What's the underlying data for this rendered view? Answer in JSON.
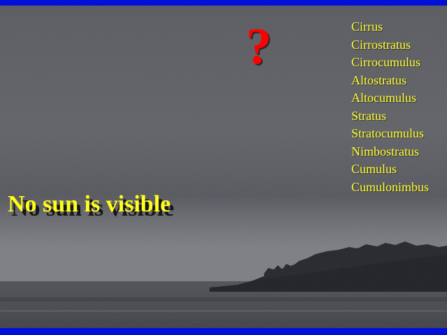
{
  "slide": {
    "question_mark": "?",
    "cloud_types": [
      "Cirrus",
      "Cirrostratus",
      "Cirrocumulus",
      "Altostratus",
      "Altocumulus",
      "Stratus",
      "Stratocumulus",
      "Nimbostratus",
      "Cumulus",
      "Cumulonimbus"
    ],
    "caption": "No sun is visible"
  },
  "colors": {
    "border": "#0010d8",
    "sky": "#5a5b60",
    "question_mark": "#ff0000",
    "list_text": "#ffff33",
    "caption_text": "#ffff1a"
  }
}
